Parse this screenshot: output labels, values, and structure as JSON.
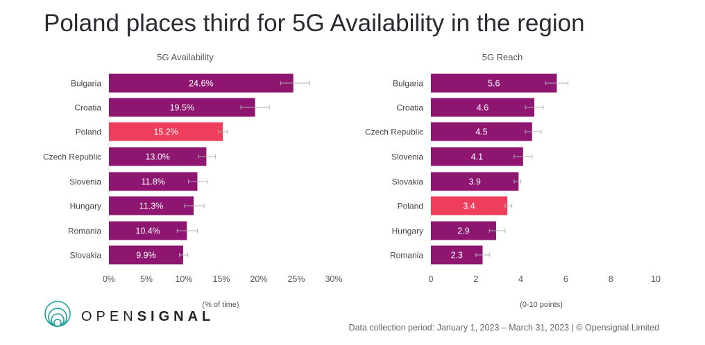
{
  "title": "Poland places third for 5G Availability in the region",
  "colors": {
    "bar": "#8e1671",
    "highlight": "#ef3e5c",
    "error": "#b0b0b0",
    "text": "#4a4a55",
    "logo": "#1aa39a"
  },
  "logo_text": "OPENSIGNAL",
  "footer": "Data collection period: January 1, 2023 – March 31, 2023 | © Opensignal Limited",
  "chart_data": [
    {
      "type": "bar",
      "title": "5G Availability",
      "xlabel": "(% of time)",
      "xlim": [
        0,
        30
      ],
      "ticks": [
        "0%",
        "5%",
        "10%",
        "15%",
        "20%",
        "25%",
        "30%"
      ],
      "tick_values": [
        0,
        5,
        10,
        15,
        20,
        25,
        30
      ],
      "categories": [
        "Bulgaria",
        "Croatia",
        "Poland",
        "Czech Republic",
        "Slovenia",
        "Hungary",
        "Romania",
        "Slovakia"
      ],
      "values": [
        24.6,
        19.5,
        15.2,
        13.0,
        11.8,
        11.3,
        10.4,
        9.9
      ],
      "labels": [
        "24.6%",
        "19.5%",
        "15.2%",
        "13.0%",
        "11.8%",
        "11.3%",
        "10.4%",
        "9.9%"
      ],
      "error_low": [
        22.9,
        17.6,
        14.6,
        11.9,
        10.6,
        10.1,
        9.1,
        9.4
      ],
      "error_high": [
        26.8,
        21.4,
        15.8,
        14.2,
        13.1,
        12.7,
        11.8,
        10.5
      ],
      "highlight": "Poland"
    },
    {
      "type": "bar",
      "title": "5G Reach",
      "xlabel": "(0-10 points)",
      "xlim": [
        0,
        10
      ],
      "ticks": [
        "0",
        "2",
        "4",
        "6",
        "8",
        "10"
      ],
      "tick_values": [
        0,
        2,
        4,
        6,
        8,
        10
      ],
      "categories": [
        "Bulgaria",
        "Croatia",
        "Czech Republic",
        "Slovenia",
        "Slovakia",
        "Poland",
        "Hungary",
        "Romania"
      ],
      "values": [
        5.6,
        4.6,
        4.5,
        4.1,
        3.9,
        3.4,
        2.9,
        2.3
      ],
      "labels": [
        "5.6",
        "4.6",
        "4.5",
        "4.1",
        "3.9",
        "3.4",
        "2.9",
        "2.3"
      ],
      "error_low": [
        5.1,
        4.2,
        4.2,
        3.7,
        3.7,
        3.3,
        2.6,
        2.0
      ],
      "error_high": [
        6.1,
        5.0,
        4.9,
        4.5,
        4.0,
        3.6,
        3.3,
        2.6
      ],
      "highlight": "Poland"
    }
  ]
}
